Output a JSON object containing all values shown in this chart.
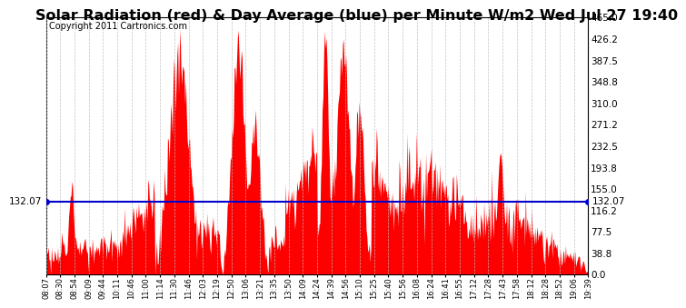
{
  "title": "Solar Radiation (red) & Day Average (blue) per Minute W/m2 Wed Jul 27 19:40",
  "copyright": "Copyright 2011 Cartronics.com",
  "avg_value": 132.07,
  "ymax": 465.0,
  "ymin": 0.0,
  "yticks": [
    0.0,
    38.8,
    77.5,
    116.2,
    155.0,
    193.8,
    232.5,
    271.2,
    310.0,
    348.8,
    387.5,
    426.2,
    465.0
  ],
  "bg_color": "#ffffff",
  "grid_color": "#bbbbbb",
  "fill_color": "#ff0000",
  "line_color": "#0000cc",
  "title_fontsize": 11.5,
  "copyright_fontsize": 7,
  "xtick_labels": [
    "08:07",
    "08:30",
    "08:54",
    "09:09",
    "09:44",
    "10:11",
    "10:46",
    "11:00",
    "11:14",
    "11:30",
    "11:46",
    "12:03",
    "12:19",
    "12:50",
    "13:06",
    "13:21",
    "13:35",
    "13:50",
    "14:09",
    "14:24",
    "14:39",
    "14:56",
    "15:10",
    "15:25",
    "15:40",
    "15:56",
    "16:08",
    "16:24",
    "16:41",
    "16:55",
    "17:12",
    "17:28",
    "17:43",
    "17:58",
    "18:12",
    "18:28",
    "18:52",
    "19:06",
    "19:39"
  ],
  "n_points": 692
}
